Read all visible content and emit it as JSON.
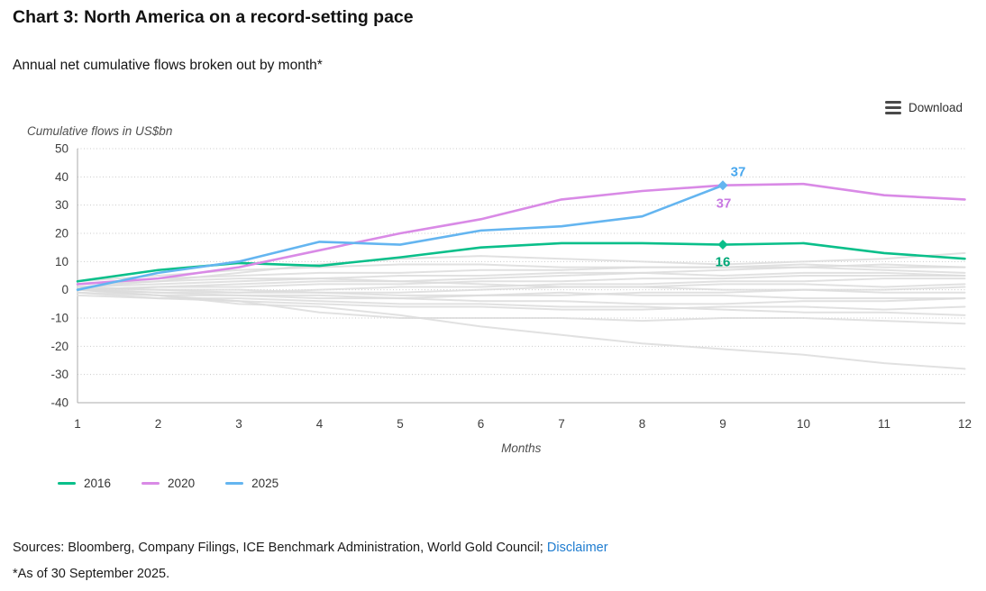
{
  "header": {
    "title": "Chart 3: North America on a record-setting pace",
    "subtitle": "Annual net cumulative flows broken out by month*"
  },
  "toolbar": {
    "download_label": "Download",
    "download_icon": "hamburger-lines-icon"
  },
  "chart_data": {
    "type": "line",
    "axis_title": "Cumulative flows in US$bn",
    "xlabel": "Months",
    "x": [
      1,
      2,
      3,
      4,
      5,
      6,
      7,
      8,
      9,
      10,
      11,
      12
    ],
    "ylim": [
      -40,
      50
    ],
    "yticks": [
      50,
      40,
      30,
      20,
      10,
      0,
      -10,
      -20,
      -30,
      -40
    ],
    "grid": "dotted horizontal",
    "legend_position": "bottom-left",
    "colors": {
      "green_line": "#0abf8a",
      "green_label": "#00a878",
      "purple_line": "#d98ae6",
      "purple_label": "#c879e2",
      "blue_line": "#64b5f0",
      "blue_label": "#48a7ee",
      "background_line": "#dcdcdc",
      "gridline": "#c9c9c9",
      "axis_line": "#ababab",
      "tick_text": "#3d3d3d"
    },
    "series": [
      {
        "name": "2016",
        "color_key": "green_line",
        "label_color_key": "green_label",
        "values": [
          3,
          7,
          9.5,
          8.5,
          11.5,
          15,
          16.5,
          16.5,
          16,
          16.5,
          13,
          11
        ],
        "marker_month": 9,
        "marker_value": 16,
        "end_label": "16",
        "label_dx": 0,
        "label_dy": 24
      },
      {
        "name": "2020",
        "color_key": "purple_line",
        "label_color_key": "purple_label",
        "values": [
          2,
          4,
          8,
          14,
          20,
          25,
          32,
          35,
          37,
          37.5,
          33.5,
          32
        ],
        "marker_month": null,
        "marker_value": null,
        "end_label": "37",
        "label_dx": 1,
        "label_dy": 25
      },
      {
        "name": "2025",
        "color_key": "blue_line",
        "label_color_key": "blue_label",
        "values": [
          0,
          6,
          10,
          17,
          16,
          21,
          22.5,
          26,
          37
        ],
        "marker_month": 9,
        "marker_value": 37,
        "end_label": "37",
        "label_dx": 17,
        "label_dy": -10
      }
    ],
    "background_series": [
      {
        "values": [
          1,
          2,
          3,
          4,
          5,
          5,
          6,
          6,
          5,
          6,
          6,
          5
        ]
      },
      {
        "values": [
          0,
          1,
          1,
          2,
          2,
          3,
          3,
          4,
          4,
          5,
          5,
          5
        ]
      },
      {
        "values": [
          2,
          3,
          4,
          4,
          3,
          4,
          5,
          6,
          7,
          8,
          9,
          8
        ]
      },
      {
        "values": [
          0,
          -1,
          -1,
          0,
          1,
          1,
          2,
          2,
          3,
          3,
          4,
          4
        ]
      },
      {
        "values": [
          -1,
          -2,
          -2,
          -3,
          -3,
          -2,
          -2,
          -1,
          -1,
          0,
          0,
          1
        ]
      },
      {
        "values": [
          0,
          -1,
          -2,
          -2,
          -3,
          -4,
          -4,
          -5,
          -5,
          -4,
          -4,
          -3
        ]
      },
      {
        "values": [
          1,
          0,
          0,
          -1,
          -1,
          0,
          1,
          1,
          2,
          2,
          1,
          2
        ]
      },
      {
        "values": [
          -1,
          -3,
          -4,
          -5,
          -6,
          -6,
          -7,
          -7,
          -6,
          -6,
          -7,
          -6
        ]
      },
      {
        "values": [
          0,
          -2,
          -4,
          -8,
          -10,
          -10,
          -10,
          -11,
          -10,
          -10,
          -11,
          -12
        ]
      },
      {
        "values": [
          0,
          -2,
          -5,
          -6,
          -9,
          -13,
          -16,
          -19,
          -21,
          -23,
          -26,
          -28
        ]
      },
      {
        "values": [
          2,
          4,
          5,
          6,
          6,
          7,
          7,
          8,
          8,
          8,
          7,
          6
        ]
      },
      {
        "values": [
          0,
          1,
          2,
          3,
          3,
          2,
          1,
          1,
          0,
          0,
          -1,
          -1
        ]
      },
      {
        "values": [
          -2,
          -3,
          -3,
          -4,
          -5,
          -5,
          -6,
          -6,
          -7,
          -8,
          -8,
          -9
        ]
      },
      {
        "values": [
          1,
          3,
          6,
          9,
          11,
          12,
          11,
          10,
          9,
          10,
          11,
          13
        ]
      },
      {
        "values": [
          0,
          0,
          -1,
          -1,
          -2,
          -2,
          -1,
          -2,
          -2,
          -3,
          -3,
          -3
        ]
      },
      {
        "values": [
          3,
          5,
          7,
          8,
          9,
          9,
          8,
          8,
          8,
          9,
          8,
          8
        ]
      }
    ],
    "legend": [
      "2016",
      "2020",
      "2025"
    ]
  },
  "footer": {
    "sources_prefix": "Sources: Bloomberg, Company Filings, ICE Benchmark Administration, World Gold Council; ",
    "disclaimer_label": "Disclaimer",
    "footnote": "*As of 30 September 2025."
  }
}
